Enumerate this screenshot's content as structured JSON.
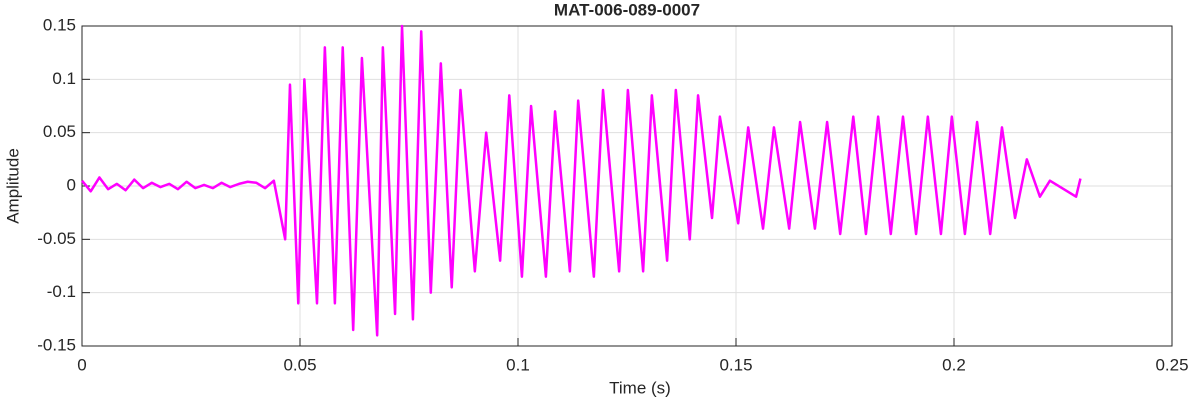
{
  "chart_data": {
    "type": "line",
    "title": "MAT-006-089-0007",
    "xlabel": "Time (s)",
    "ylabel": "Amplitude",
    "xlim": [
      0,
      0.25
    ],
    "ylim": [
      -0.15,
      0.15
    ],
    "xticks": [
      0,
      0.05,
      0.1,
      0.15,
      0.2,
      0.25
    ],
    "yticks": [
      -0.15,
      -0.1,
      -0.05,
      0,
      0.05,
      0.1,
      0.15
    ],
    "grid": true,
    "series": [
      {
        "color": "#ff00ff",
        "x": [
          0,
          0.002,
          0.004,
          0.006,
          0.008,
          0.01,
          0.012,
          0.014,
          0.016,
          0.018,
          0.02,
          0.022,
          0.024,
          0.026,
          0.028,
          0.03,
          0.032,
          0.034,
          0.036,
          0.038,
          0.04,
          0.042,
          0.044,
          0.0466,
          0.0477,
          0.0496,
          0.051,
          0.0539,
          0.0557,
          0.058,
          0.0598,
          0.0622,
          0.0642,
          0.0677,
          0.069,
          0.0718,
          0.0734,
          0.0759,
          0.0778,
          0.08,
          0.0823,
          0.0848,
          0.0868,
          0.0901,
          0.0927,
          0.0959,
          0.098,
          0.1009,
          0.103,
          0.1064,
          0.1085,
          0.1119,
          0.1138,
          0.1174,
          0.1195,
          0.1232,
          0.1252,
          0.1287,
          0.1307,
          0.1342,
          0.1362,
          0.1394,
          0.1413,
          0.1445,
          0.1463,
          0.1505,
          0.1528,
          0.1562,
          0.1587,
          0.1622,
          0.1647,
          0.1681,
          0.1709,
          0.1739,
          0.1769,
          0.1798,
          0.1826,
          0.1855,
          0.1883,
          0.1913,
          0.194,
          0.197,
          0.1995,
          0.2025,
          0.2053,
          0.2083,
          0.211,
          0.214,
          0.2167,
          0.2197,
          0.222,
          0.228,
          0.229
        ],
        "values": [
          0.005,
          -0.005,
          0.008,
          -0.003,
          0.002,
          -0.004,
          0.006,
          -0.002,
          0.003,
          -0.001,
          0.002,
          -0.003,
          0.004,
          -0.002,
          0.001,
          -0.002,
          0.003,
          -0.001,
          0.002,
          0.004,
          0.003,
          -0.002,
          0.005,
          -0.05,
          0.095,
          -0.11,
          0.1,
          -0.11,
          0.13,
          -0.11,
          0.13,
          -0.135,
          0.12,
          -0.14,
          0.13,
          -0.12,
          0.15,
          -0.125,
          0.145,
          -0.1,
          0.115,
          -0.095,
          0.09,
          -0.08,
          0.05,
          -0.07,
          0.085,
          -0.085,
          0.075,
          -0.085,
          0.07,
          -0.08,
          0.08,
          -0.085,
          0.09,
          -0.08,
          0.09,
          -0.08,
          0.085,
          -0.07,
          0.09,
          -0.05,
          0.085,
          -0.03,
          0.065,
          -0.035,
          0.055,
          -0.04,
          0.055,
          -0.04,
          0.06,
          -0.04,
          0.06,
          -0.045,
          0.065,
          -0.045,
          0.065,
          -0.045,
          0.065,
          -0.045,
          0.065,
          -0.045,
          0.065,
          -0.045,
          0.06,
          -0.045,
          0.055,
          -0.03,
          0.025,
          -0.01,
          0.005,
          -0.01,
          0.007
        ]
      }
    ]
  }
}
